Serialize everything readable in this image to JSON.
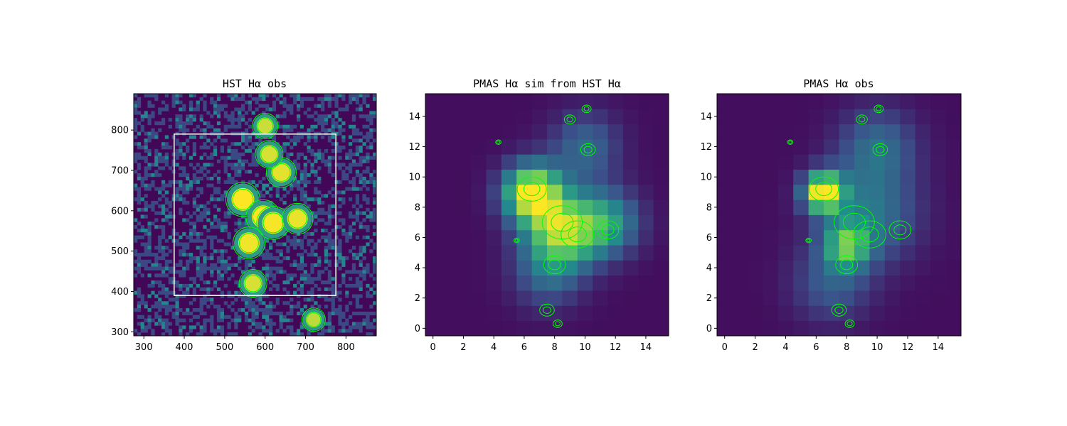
{
  "chart_data": [
    {
      "type": "heatmap",
      "title": "HST Hα obs",
      "xlim": [
        275,
        875
      ],
      "ylim": [
        290,
        890
      ],
      "xticks": [
        "300",
        "400",
        "500",
        "600",
        "700",
        "800"
      ],
      "yticks": [
        "300",
        "400",
        "500",
        "600",
        "700",
        "800"
      ],
      "colormap": "viridis",
      "contour_color": "#00ff00",
      "box": {
        "x": [
          375,
          775
        ],
        "y": [
          390,
          790
        ],
        "color": "#ffffff"
      },
      "bright_regions": [
        {
          "x": 545,
          "y": 628,
          "level": 1.0
        },
        {
          "x": 595,
          "y": 585,
          "level": 1.0
        },
        {
          "x": 620,
          "y": 570,
          "level": 0.95
        },
        {
          "x": 560,
          "y": 520,
          "level": 0.9
        },
        {
          "x": 680,
          "y": 580,
          "level": 0.85
        },
        {
          "x": 640,
          "y": 695,
          "level": 0.8
        },
        {
          "x": 570,
          "y": 420,
          "level": 0.7
        },
        {
          "x": 610,
          "y": 740,
          "level": 0.7
        },
        {
          "x": 600,
          "y": 810,
          "level": 0.6
        },
        {
          "x": 720,
          "y": 330,
          "level": 0.5
        }
      ]
    },
    {
      "type": "heatmap",
      "title": "PMAS Hα sim from HST Hα",
      "xlim": [
        -0.5,
        15.5
      ],
      "ylim": [
        -0.5,
        15.5
      ],
      "xticks": [
        "0",
        "2",
        "4",
        "6",
        "8",
        "10",
        "12",
        "14"
      ],
      "yticks": [
        "0",
        "2",
        "4",
        "6",
        "8",
        "10",
        "12",
        "14"
      ],
      "colormap": "viridis",
      "contour_color": "#00ff00",
      "peaks": [
        {
          "x": 6.5,
          "y": 9.0,
          "amp": 0.95,
          "sigma": 1.3
        },
        {
          "x": 8.5,
          "y": 6.5,
          "amp": 0.8,
          "sigma": 1.7
        },
        {
          "x": 11.5,
          "y": 7.0,
          "amp": 0.45,
          "sigma": 1.5
        },
        {
          "x": 10.0,
          "y": 12.0,
          "amp": 0.3,
          "sigma": 1.6
        },
        {
          "x": 7.5,
          "y": 3.5,
          "amp": 0.25,
          "sigma": 1.6
        }
      ]
    },
    {
      "type": "heatmap",
      "title": "PMAS Hα obs",
      "xlim": [
        -0.5,
        15.5
      ],
      "ylim": [
        -0.5,
        15.5
      ],
      "xticks": [
        "0",
        "2",
        "4",
        "6",
        "8",
        "10",
        "12",
        "14"
      ],
      "yticks": [
        "0",
        "2",
        "4",
        "6",
        "8",
        "10",
        "12",
        "14"
      ],
      "colormap": "viridis",
      "contour_color": "#00ff00",
      "peaks": [
        {
          "x": 6.5,
          "y": 9.0,
          "amp": 1.0,
          "sigma": 0.9
        },
        {
          "x": 8.0,
          "y": 5.5,
          "amp": 0.55,
          "sigma": 1.0
        },
        {
          "x": 9.5,
          "y": 7.5,
          "amp": 0.35,
          "sigma": 2.2
        },
        {
          "x": 10.0,
          "y": 12.0,
          "amp": 0.3,
          "sigma": 1.8
        },
        {
          "x": 7.0,
          "y": 3.0,
          "amp": 0.25,
          "sigma": 1.8
        }
      ]
    }
  ]
}
